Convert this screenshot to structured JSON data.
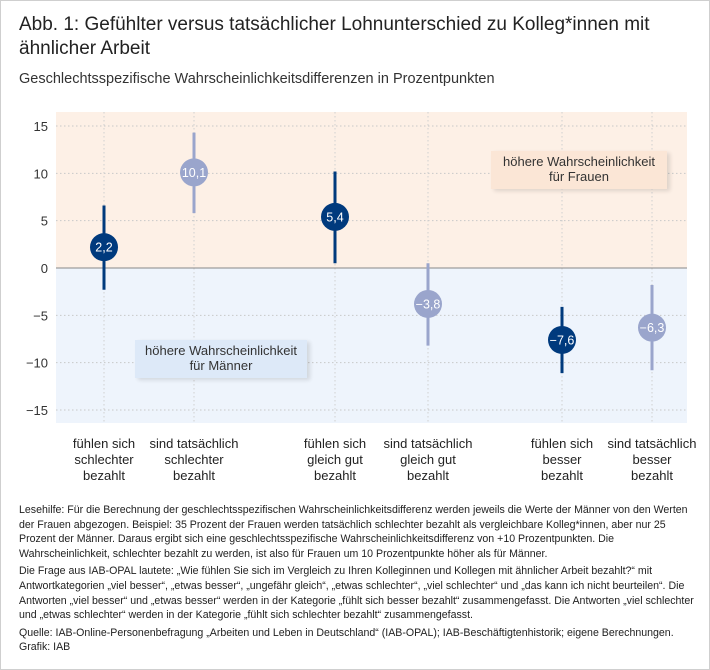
{
  "title": "Abb. 1: Gefühlter versus tatsächlicher Lohnunterschied zu Kolleg*innen mit ähnlicher Arbeit",
  "subtitle": "Geschlechtsspezifische Wahrscheinlichkeitsdifferenzen in Prozentpunkten",
  "chart_data": {
    "type": "scatter",
    "title": "Abb. 1: Gefühlter versus tatsächlicher Lohnunterschied zu Kolleg*innen mit ähnlicher Arbeit",
    "subtitle": "Geschlechtsspezifische Wahrscheinlichkeitsdifferenzen in Prozentpunkten",
    "ylim": [
      -16.5,
      16.5
    ],
    "yticks": [
      15,
      10,
      5,
      0,
      -5,
      -10,
      -15
    ],
    "ytick_labels": [
      "15",
      "10",
      "5",
      "0",
      "−5",
      "−10",
      "−15"
    ],
    "grid": true,
    "categories": [
      [
        "fühlen sich",
        "schlechter",
        "bezahlt"
      ],
      [
        "sind tatsächlich",
        "schlechter",
        "bezahlt"
      ],
      [
        "fühlen sich",
        "gleich gut",
        "bezahlt"
      ],
      [
        "sind tatsächlich",
        "gleich gut",
        "bezahlt"
      ],
      [
        "fühlen sich",
        "besser",
        "bezahlt"
      ],
      [
        "sind tatsächlich",
        "besser",
        "bezahlt"
      ]
    ],
    "points": [
      {
        "value": 2.2,
        "label": "2,2",
        "low": -2.3,
        "high": 6.6,
        "kind": "gefühlt"
      },
      {
        "value": 10.1,
        "label": "10,1",
        "low": 5.8,
        "high": 14.3,
        "kind": "tatsächlich"
      },
      {
        "value": 5.4,
        "label": "5,4",
        "low": 0.5,
        "high": 10.2,
        "kind": "gefühlt"
      },
      {
        "value": -3.8,
        "label": "−3,8",
        "low": -8.2,
        "high": 0.5,
        "kind": "tatsächlich"
      },
      {
        "value": -7.6,
        "label": "−7,6",
        "low": -11.1,
        "high": -4.1,
        "kind": "gefühlt"
      },
      {
        "value": -6.3,
        "label": "−6,3",
        "low": -10.8,
        "high": -1.8,
        "kind": "tatsächlich"
      }
    ],
    "colors": {
      "gefühlt": "#003a7d",
      "tatsächlich": "#9aa5cc",
      "positive_area": "#fdf0e6",
      "negative_area": "#eef4fc"
    },
    "annotations": {
      "women": [
        "höhere Wahrscheinlichkeit",
        "für Frauen"
      ],
      "men": [
        "höhere Wahrscheinlichkeit",
        "für Männer"
      ]
    }
  },
  "notes": {
    "lesehilfe": "Lesehilfe: Für die Berechnung der geschlechtsspezifischen Wahrscheinlichkeitsdifferenz werden jeweils die Werte der Männer von den Werten der Frauen abgezogen. Beispiel: 35 Prozent der Frauen werden tatsächlich schlechter bezahlt als vergleichbare Kolleg*innen, aber nur 25 Prozent der Männer. Daraus ergibt sich eine geschlechtsspezifische Wahrscheinlichkeitsdifferenz von +10 Prozentpunkten. Die Wahrscheinlichkeit, schlechter bezahlt zu werden, ist also für Frauen um 10 Prozentpunkte höher als für Männer.",
    "frage": "Die Frage aus IAB-OPAL lautete: „Wie fühlen Sie sich im Vergleich zu Ihren Kolleginnen und Kollegen mit ähnlicher Arbeit bezahlt?“ mit Antwortkategorien „viel besser“, „etwas besser“, „ungefähr gleich“, „etwas schlechter“, „viel schlechter“ und „das kann ich nicht beurteilen“. Die Antworten „viel besser“ und „etwas besser“ werden in der Kategorie „fühlt sich besser bezahlt“ zusammengefasst. Die Antworten „viel schlechter und „etwas schlechter“ werden in der Kategorie „fühlt sich schlechter bezahlt“ zusammengefasst.",
    "quelle": "Quelle: IAB-Online-Personenbefragung „Arbeiten und Leben in Deutschland“ (IAB-OPAL);  IAB-Beschäftigtenhistorik; eigene Berechnungen.",
    "grafik": "Grafik: IAB"
  }
}
